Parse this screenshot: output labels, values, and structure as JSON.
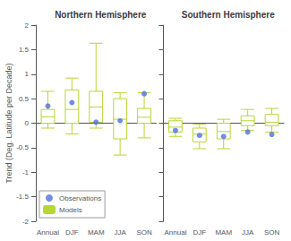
{
  "chart_data": [
    {
      "type": "boxplot",
      "title": "Northern Hemisphere",
      "ylabel": "Trend (Deg. Latitude per Decade)",
      "categories": [
        "Annual",
        "DJF",
        "MAM",
        "JJA",
        "SON"
      ],
      "ylim": [
        -2,
        2
      ],
      "yticks": [
        -2,
        -1.5,
        -1,
        -0.5,
        0,
        0.5,
        1,
        1.5,
        2
      ],
      "grid": false,
      "legend": "lower left",
      "series": [
        {
          "name": "Observations",
          "type": "scatter",
          "values": [
            0.35,
            0.42,
            0.02,
            0.05,
            0.6
          ]
        },
        {
          "name": "Models",
          "type": "boxplot",
          "whisker_lo": [
            -0.1,
            -0.22,
            -0.1,
            -0.65,
            -0.3
          ],
          "q1": [
            0.0,
            0.0,
            0.02,
            -0.32,
            0.0
          ],
          "median": [
            0.13,
            0.28,
            0.33,
            0.08,
            0.12
          ],
          "q3": [
            0.28,
            0.68,
            0.65,
            0.5,
            0.3
          ],
          "whisker_hi": [
            0.65,
            0.92,
            1.63,
            0.62,
            0.62
          ]
        }
      ]
    },
    {
      "type": "boxplot",
      "title": "Southern Hemisphere",
      "categories": [
        "Annual",
        "DJF",
        "MAM",
        "JJA",
        "SON"
      ],
      "ylim": [
        -2,
        2
      ],
      "yticks": [
        -2,
        -1.5,
        -1,
        -0.5,
        0,
        0.5,
        1,
        1.5,
        2
      ],
      "grid": false,
      "tick_labels": "x",
      "series": [
        {
          "name": "Observations",
          "type": "scatter",
          "values": [
            -0.15,
            -0.25,
            -0.27,
            -0.18,
            -0.23
          ]
        },
        {
          "name": "Models",
          "type": "boxplot",
          "whisker_lo": [
            -0.27,
            -0.52,
            -0.52,
            -0.15,
            -0.18
          ],
          "q1": [
            -0.18,
            -0.38,
            -0.32,
            -0.05,
            -0.05
          ],
          "median": [
            -0.08,
            -0.22,
            -0.17,
            0.05,
            0.02
          ],
          "q3": [
            0.05,
            -0.1,
            0.0,
            0.15,
            0.18
          ],
          "whisker_hi": [
            0.1,
            -0.02,
            0.08,
            0.28,
            0.3
          ]
        }
      ]
    }
  ]
}
